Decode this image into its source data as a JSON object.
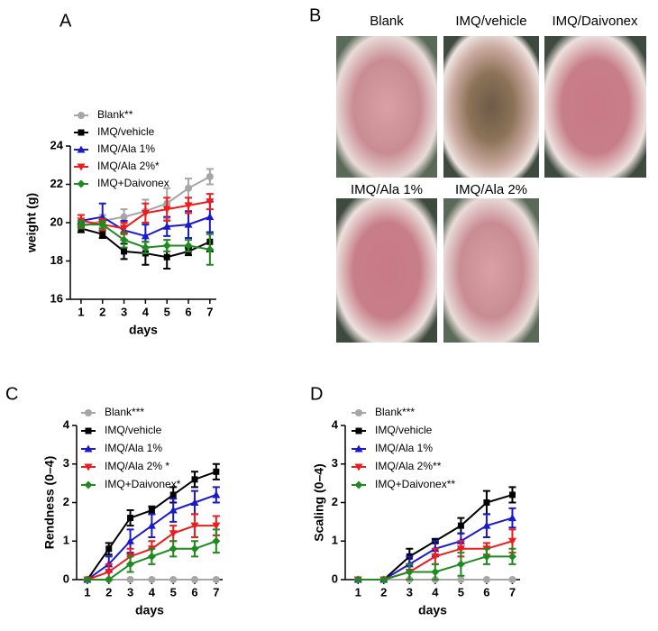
{
  "chart_data": [
    {
      "type": "line",
      "panel": "A",
      "x_label": "days",
      "y_label": "weight (g)",
      "x": [
        1,
        2,
        3,
        4,
        5,
        6,
        7
      ],
      "xlim": [
        0.5,
        7.3
      ],
      "xticks": [
        1,
        2,
        3,
        4,
        5,
        6,
        7
      ],
      "ylim": [
        16,
        24
      ],
      "yticks": [
        16,
        18,
        20,
        22,
        24
      ],
      "grid": false,
      "series": [
        {
          "name": "Blank**",
          "color": "#a6a6a6",
          "marker": "circle",
          "values": [
            19.8,
            20.1,
            20.3,
            20.6,
            21.0,
            21.8,
            22.4
          ],
          "errors": [
            0.3,
            0.3,
            0.4,
            0.6,
            0.8,
            0.5,
            0.4
          ]
        },
        {
          "name": "IMQ/vehicle",
          "color": "#000000",
          "marker": "square",
          "values": [
            19.7,
            19.4,
            18.5,
            18.4,
            18.2,
            18.5,
            19.0
          ],
          "errors": [
            0.2,
            0.2,
            0.4,
            0.6,
            0.6,
            0.2,
            0.5
          ]
        },
        {
          "name": "IMQ/Ala 1%",
          "color": "#1a1acc",
          "marker": "triangle-up",
          "values": [
            20.1,
            20.3,
            19.6,
            19.3,
            19.8,
            19.9,
            20.3
          ],
          "errors": [
            0.3,
            0.7,
            0.5,
            0.6,
            0.5,
            0.7,
            0.8
          ]
        },
        {
          "name": "IMQ/Ala 2%*",
          "color": "#ee1c1c",
          "marker": "triangle-down",
          "values": [
            20.1,
            19.9,
            19.7,
            20.5,
            20.7,
            20.9,
            21.1
          ],
          "errors": [
            0.3,
            0.3,
            0.3,
            0.5,
            0.6,
            0.4,
            0.4
          ]
        },
        {
          "name": "IMQ+Daivonex",
          "color": "#1f8a1f",
          "marker": "diamond",
          "values": [
            19.9,
            19.9,
            19.1,
            18.7,
            18.8,
            18.8,
            18.6
          ],
          "errors": [
            0.2,
            0.2,
            0.4,
            0.3,
            0.3,
            0.3,
            0.8
          ]
        }
      ]
    },
    {
      "type": "line",
      "panel": "C",
      "x_label": "days",
      "y_label": "Rendness (0–4)",
      "x": [
        1,
        2,
        3,
        4,
        5,
        6,
        7
      ],
      "xlim": [
        0.5,
        7.3
      ],
      "xticks": [
        1,
        2,
        3,
        4,
        5,
        6,
        7
      ],
      "ylim": [
        0,
        4
      ],
      "yticks": [
        0,
        1,
        2,
        3,
        4
      ],
      "grid": false,
      "series": [
        {
          "name": "Blank***",
          "color": "#a6a6a6",
          "marker": "circle",
          "values": [
            0,
            0,
            0,
            0,
            0,
            0,
            0
          ],
          "errors": [
            0,
            0,
            0,
            0,
            0,
            0,
            0
          ]
        },
        {
          "name": "IMQ/vehicle",
          "color": "#000000",
          "marker": "square",
          "values": [
            0,
            0.8,
            1.6,
            1.8,
            2.2,
            2.6,
            2.8
          ],
          "errors": [
            0,
            0.15,
            0.2,
            0.1,
            0.2,
            0.2,
            0.2
          ]
        },
        {
          "name": "IMQ/Ala 1%",
          "color": "#1a1acc",
          "marker": "triangle-up",
          "values": [
            0,
            0.4,
            1.0,
            1.4,
            1.8,
            2.0,
            2.2
          ],
          "errors": [
            0,
            0.2,
            0.3,
            0.3,
            0.3,
            0.3,
            0.2
          ]
        },
        {
          "name": "IMQ/Ala 2% *",
          "color": "#ee1c1c",
          "marker": "triangle-down",
          "values": [
            0,
            0.2,
            0.6,
            0.8,
            1.2,
            1.4,
            1.4
          ],
          "errors": [
            0,
            0.2,
            0.2,
            0.2,
            0.2,
            0.3,
            0.25
          ]
        },
        {
          "name": "IMQ+Daivonex*",
          "color": "#1f8a1f",
          "marker": "diamond",
          "values": [
            0,
            0,
            0.4,
            0.6,
            0.8,
            0.8,
            1.0
          ],
          "errors": [
            0,
            0,
            0.2,
            0.2,
            0.2,
            0.2,
            0.3
          ]
        }
      ]
    },
    {
      "type": "line",
      "panel": "D",
      "x_label": "days",
      "y_label": "Scaling (0–4)",
      "x": [
        1,
        2,
        3,
        4,
        5,
        6,
        7
      ],
      "xlim": [
        0.5,
        7.3
      ],
      "xticks": [
        1,
        2,
        3,
        4,
        5,
        6,
        7
      ],
      "ylim": [
        0,
        4
      ],
      "yticks": [
        0,
        1,
        2,
        3,
        4
      ],
      "grid": false,
      "series": [
        {
          "name": "Blank***",
          "color": "#a6a6a6",
          "marker": "circle",
          "values": [
            0,
            0,
            0,
            0,
            0,
            0,
            0
          ],
          "errors": [
            0,
            0,
            0,
            0,
            0,
            0,
            0
          ]
        },
        {
          "name": "IMQ/vehicle",
          "color": "#000000",
          "marker": "square",
          "values": [
            0,
            0,
            0.6,
            1.0,
            1.4,
            2.0,
            2.2
          ],
          "errors": [
            0,
            0,
            0.2,
            0.05,
            0.2,
            0.3,
            0.2
          ]
        },
        {
          "name": "IMQ/Ala 1%",
          "color": "#1a1acc",
          "marker": "triangle-up",
          "values": [
            0,
            0,
            0.4,
            0.8,
            1.0,
            1.4,
            1.6
          ],
          "errors": [
            0,
            0,
            0.2,
            0.2,
            0.2,
            0.3,
            0.25
          ]
        },
        {
          "name": "IMQ/Ala 2%**",
          "color": "#ee1c1c",
          "marker": "triangle-down",
          "values": [
            0,
            0,
            0.2,
            0.6,
            0.8,
            0.8,
            1.0
          ],
          "errors": [
            0,
            0,
            0.2,
            0.2,
            0.2,
            0.15,
            0.3
          ]
        },
        {
          "name": "IMQ+Daivonex**",
          "color": "#1f8a1f",
          "marker": "diamond",
          "values": [
            0,
            0,
            0.2,
            0.2,
            0.4,
            0.6,
            0.6
          ],
          "errors": [
            0,
            0,
            0.2,
            0.2,
            0.3,
            0.2,
            0.2
          ]
        }
      ]
    }
  ],
  "photo_panel": {
    "label": "B",
    "captions": [
      "Blank",
      "IMQ/vehicle",
      "IMQ/Daivonex",
      "IMQ/Ala 1%",
      "IMQ/Ala 2%"
    ]
  }
}
